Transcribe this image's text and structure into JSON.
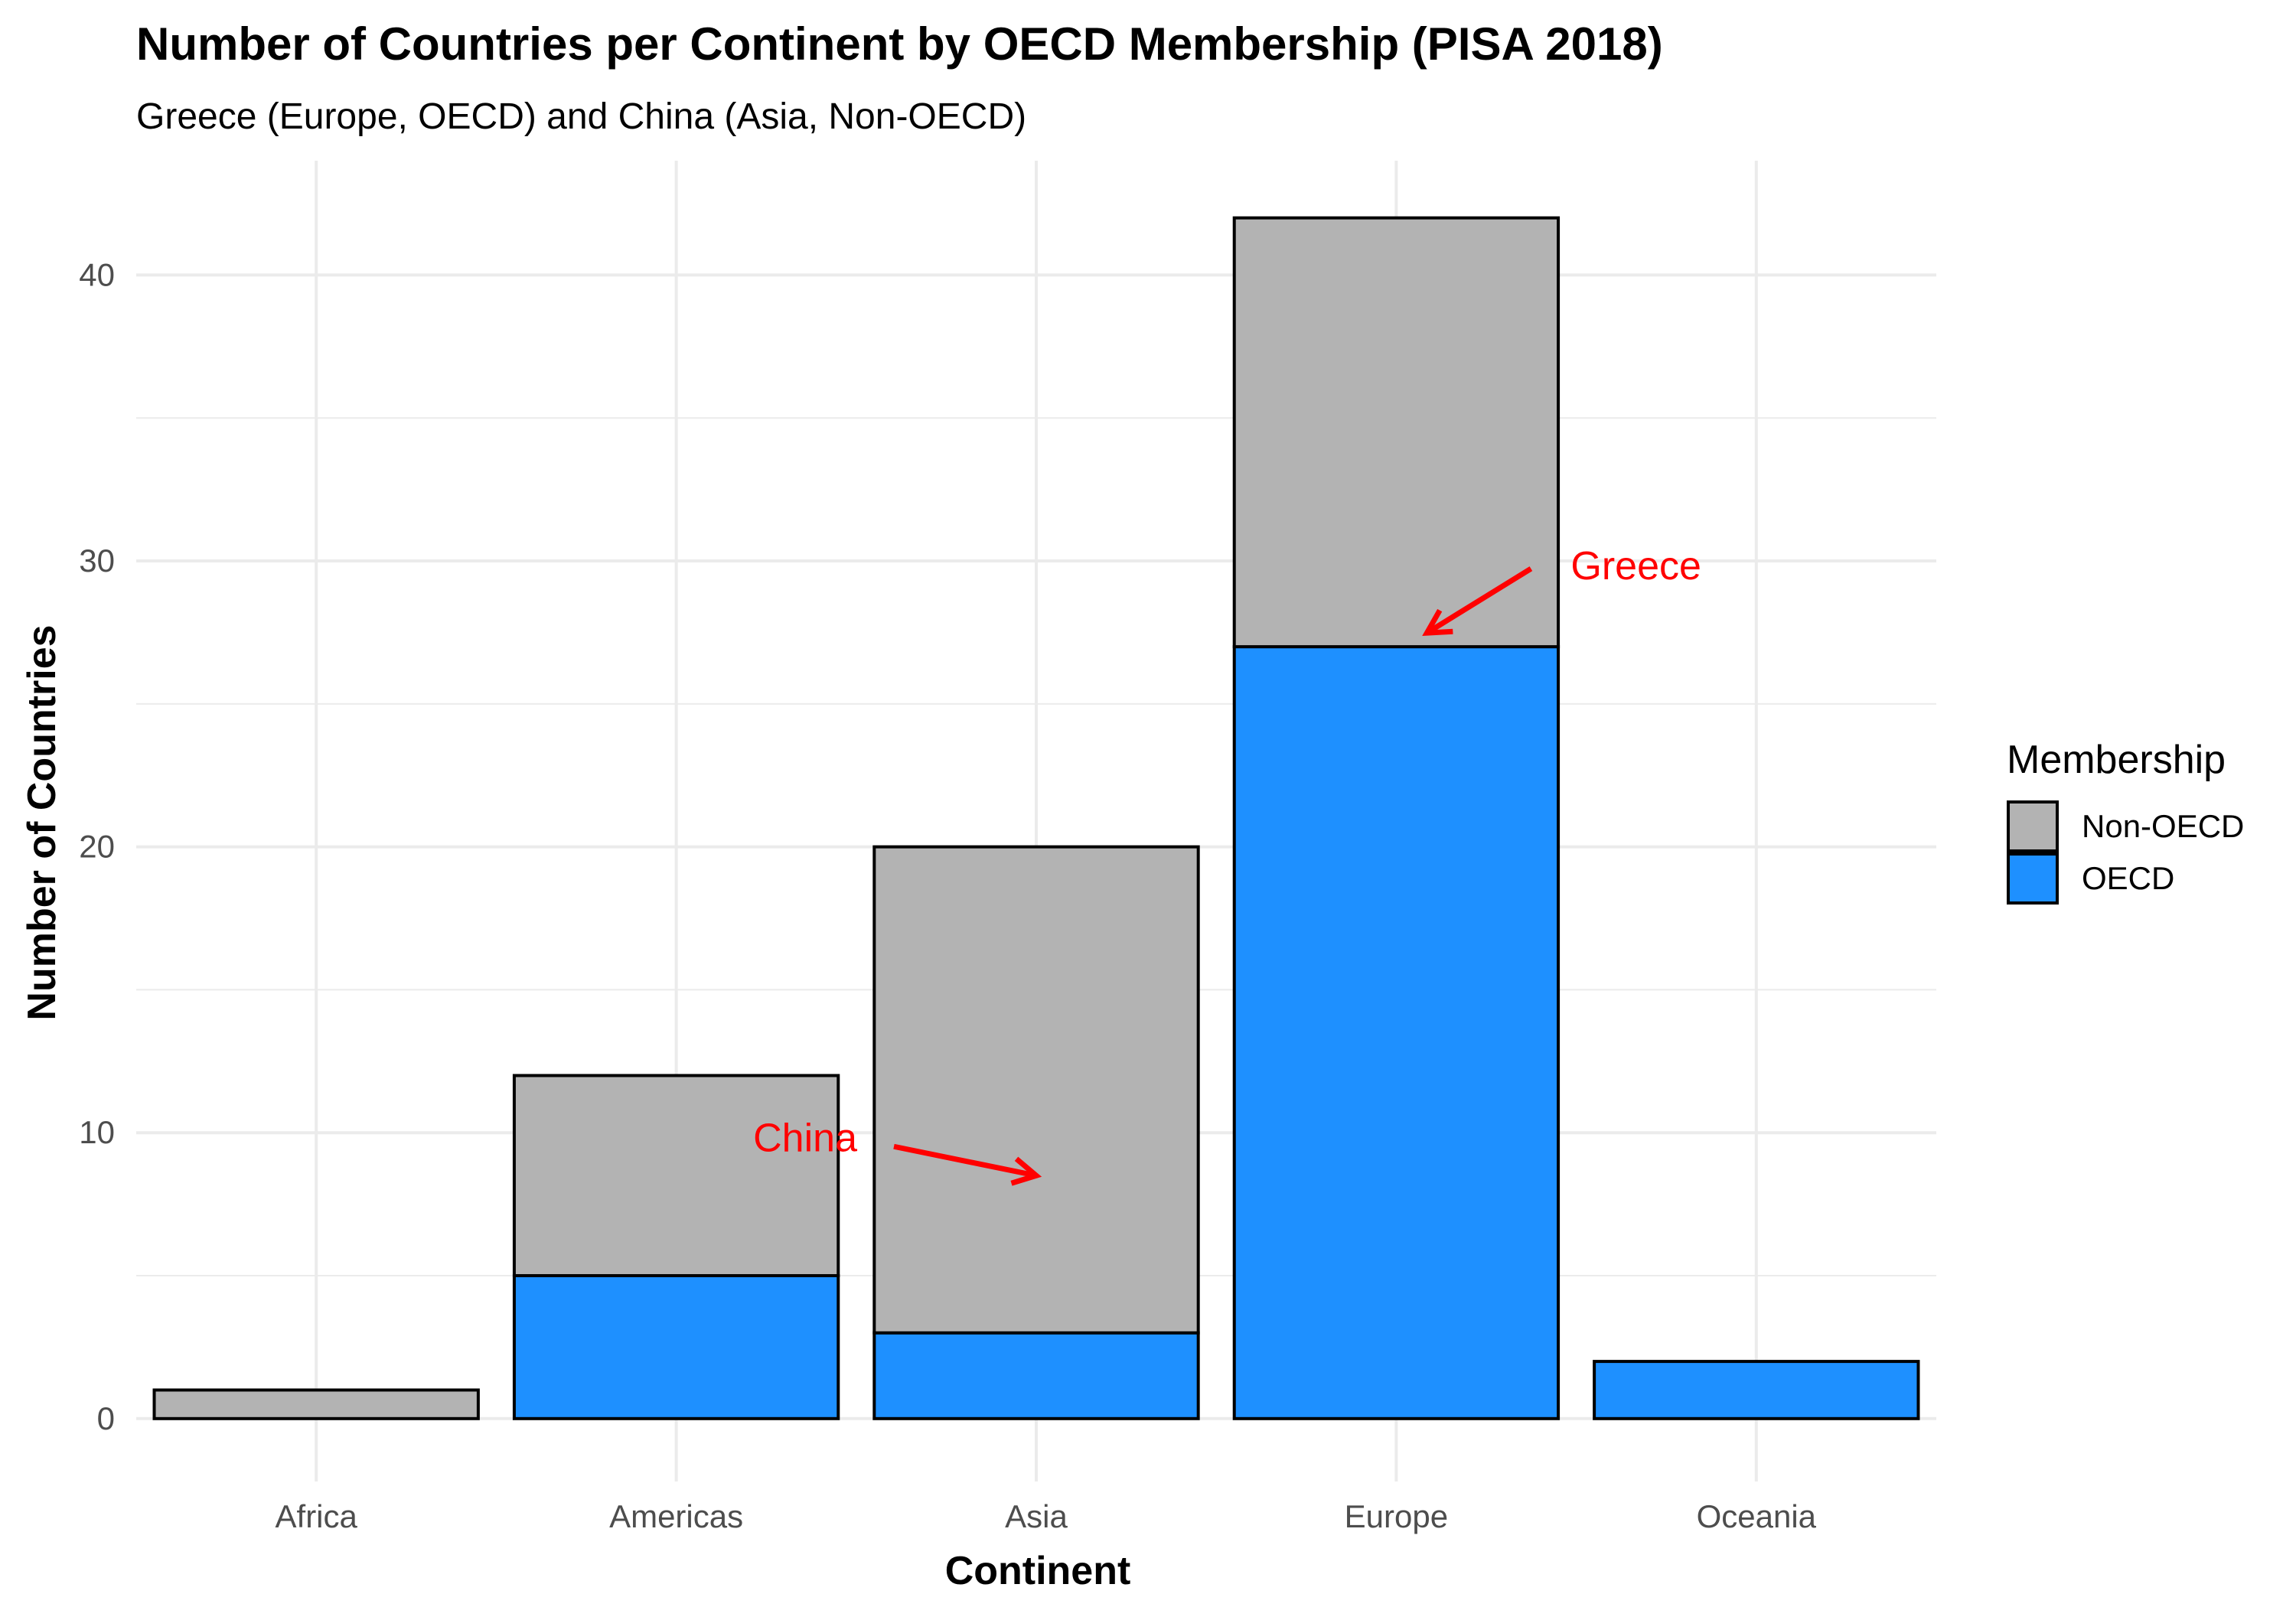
{
  "chart_data": {
    "type": "bar",
    "stacked": true,
    "title": "Number of Countries per Continent by OECD Membership (PISA 2018)",
    "subtitle": "Greece (Europe, OECD) and China (Asia, Non-OECD)",
    "xlabel": "Continent",
    "ylabel": "Number of Countries",
    "categories": [
      "Africa",
      "Americas",
      "Asia",
      "Europe",
      "Oceania"
    ],
    "series": [
      {
        "name": "OECD",
        "color": "#1e90ff",
        "values": [
          0,
          5,
          3,
          27,
          2
        ]
      },
      {
        "name": "Non-OECD",
        "color": "#b3b3b3",
        "values": [
          1,
          7,
          17,
          15,
          0
        ]
      }
    ],
    "ylim": [
      0,
      44
    ],
    "yticks": [
      0,
      10,
      20,
      30,
      40
    ],
    "grid": true,
    "legend": {
      "title": "Membership",
      "position": "right",
      "items": [
        {
          "label": "Non-OECD",
          "color": "#b3b3b3"
        },
        {
          "label": "OECD",
          "color": "#1e90ff"
        }
      ]
    },
    "annotations": [
      {
        "text": "Greece",
        "category": "Europe",
        "y": 27,
        "color": "#ff0000"
      },
      {
        "text": "China",
        "category": "Asia",
        "y": 8.5,
        "color": "#ff0000"
      }
    ]
  }
}
